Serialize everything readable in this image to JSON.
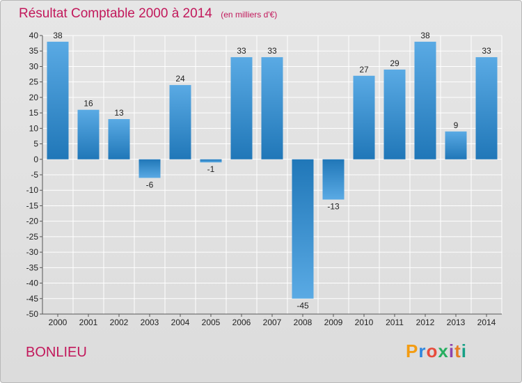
{
  "header": {
    "title": "Résultat Comptable 2000 à 2014",
    "subtitle": "(en milliers d'€)"
  },
  "footer": {
    "place": "BONLIEU",
    "logo": "Proxiti"
  },
  "colors": {
    "bar_top": "#5aaae4",
    "bar_bottom": "#2077b8",
    "title": "#c2185b",
    "grid": "#ffffff"
  },
  "chart_data": {
    "type": "bar",
    "title": "Résultat Comptable 2000 à 2014",
    "subtitle": "(en milliers d'€)",
    "categories": [
      "2000",
      "2001",
      "2002",
      "2003",
      "2004",
      "2005",
      "2006",
      "2007",
      "2008",
      "2009",
      "2010",
      "2011",
      "2012",
      "2013",
      "2014"
    ],
    "values": [
      38,
      16,
      13,
      -6,
      24,
      -1,
      33,
      33,
      -45,
      -13,
      27,
      29,
      38,
      9,
      33
    ],
    "ylim": [
      -50,
      40
    ],
    "yticks": [
      40,
      35,
      30,
      25,
      20,
      15,
      10,
      5,
      0,
      -5,
      -10,
      -15,
      -20,
      -25,
      -30,
      -35,
      -40,
      -45,
      -50
    ],
    "xlabel": "",
    "ylabel": "",
    "grid": true,
    "data_labels": true
  }
}
